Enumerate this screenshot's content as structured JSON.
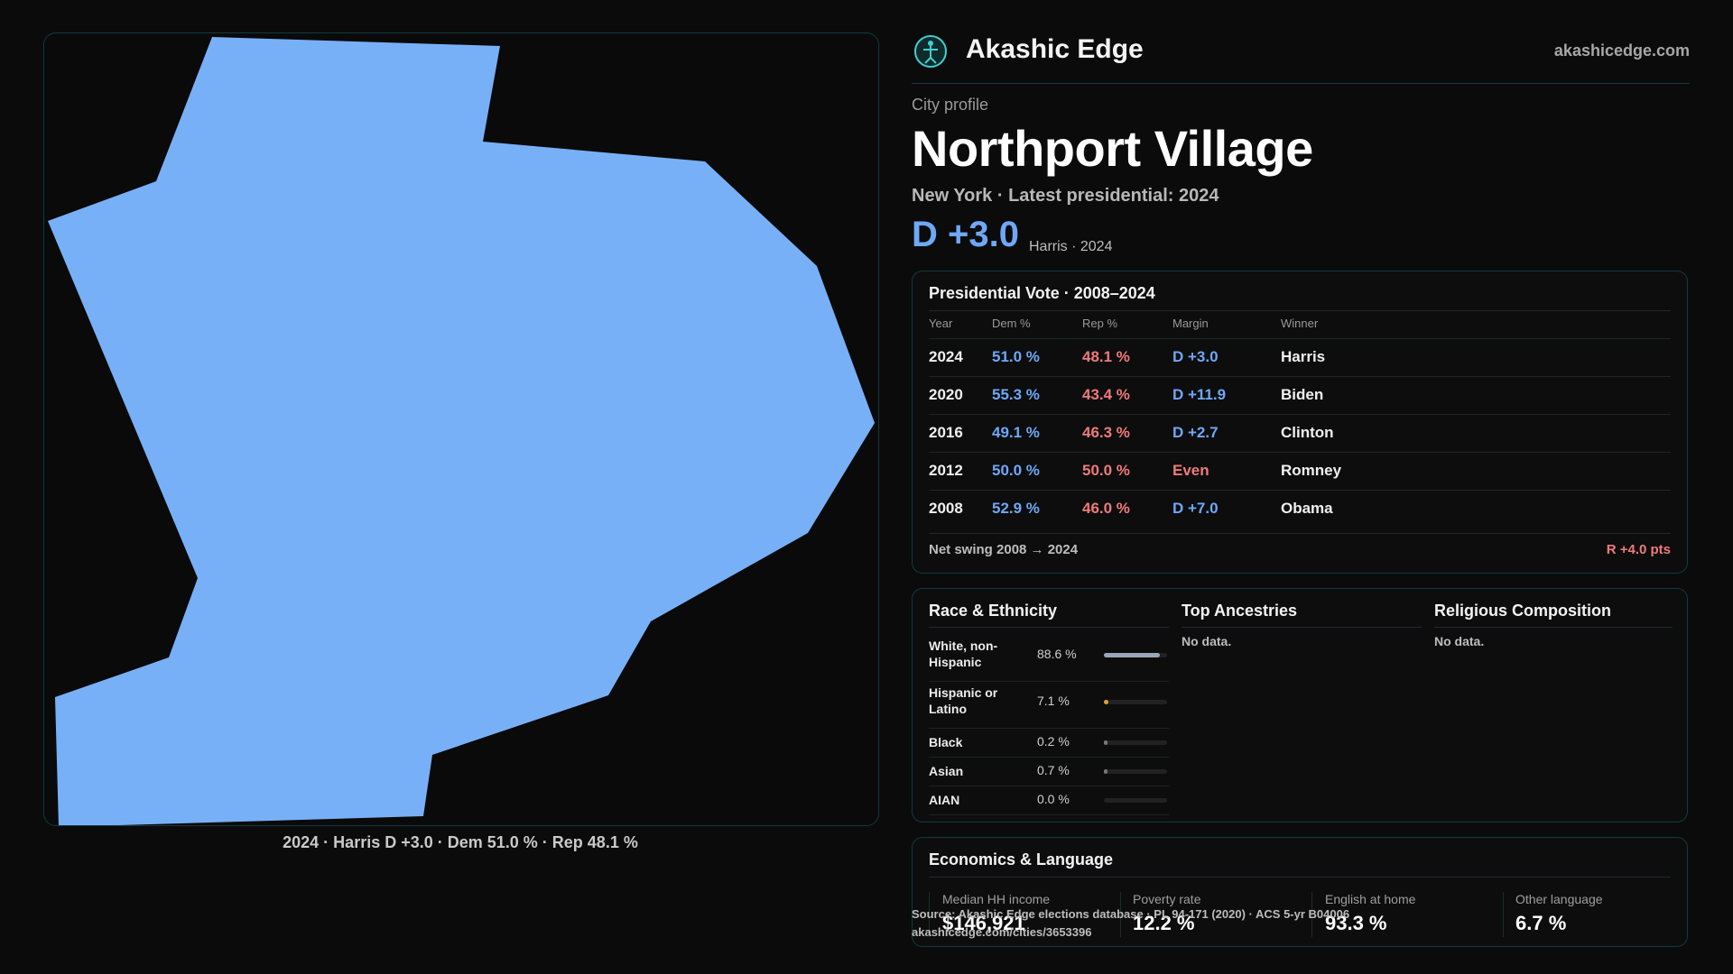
{
  "map": {
    "fill_color": "#78b0f8",
    "caption": "2024 · Harris D +3.0 · Dem 51.0 % · Rep 48.1 %"
  },
  "brand": {
    "name": "Akashic Edge",
    "url": "akashicedge.com",
    "accent": "#3fd0d0"
  },
  "profile": {
    "eyebrow": "City profile",
    "title": "Northport Village",
    "subline": "New York  · Latest presidential: 2024",
    "headline_margin": "D +3.0",
    "headline_sub": "Harris · 2024"
  },
  "presidential": {
    "title": "Presidential Vote · 2008–2024",
    "headers": {
      "year": "Year",
      "dem": "Dem %",
      "rep": "Rep %",
      "margin": "Margin",
      "winner": "Winner"
    },
    "rows": [
      {
        "year": "2024",
        "dem": "51.0 %",
        "rep": "48.1 %",
        "margin": "D +3.0",
        "margin_color": "#6ea8f7",
        "winner": "Harris"
      },
      {
        "year": "2020",
        "dem": "55.3 %",
        "rep": "43.4 %",
        "margin": "D +11.9",
        "margin_color": "#6ea8f7",
        "winner": "Biden"
      },
      {
        "year": "2016",
        "dem": "49.1 %",
        "rep": "46.3 %",
        "margin": "D +2.7",
        "margin_color": "#6ea8f7",
        "winner": "Clinton"
      },
      {
        "year": "2012",
        "dem": "50.0 %",
        "rep": "50.0 %",
        "margin": "Even",
        "margin_color": "#f07a7a",
        "winner": "Romney"
      },
      {
        "year": "2008",
        "dem": "52.9 %",
        "rep": "46.0 %",
        "margin": "D +7.0",
        "margin_color": "#6ea8f7",
        "winner": "Obama"
      }
    ],
    "swing_label": "Net swing 2008 → 2024",
    "swing_value": "R +4.0 pts"
  },
  "demographics": {
    "race_title": "Race & Ethnicity",
    "race": [
      {
        "label": "White, non-Hispanic",
        "value": "88.6 %",
        "share": 88.6,
        "color": "#9aa6b8"
      },
      {
        "label": "Hispanic or Latino",
        "value": "7.1 %",
        "share": 7.1,
        "color": "#e0a030"
      },
      {
        "label": "Black",
        "value": "0.2 %",
        "share": 0.2,
        "color": "#777777"
      },
      {
        "label": "Asian",
        "value": "0.7 %",
        "share": 0.7,
        "color": "#777777"
      },
      {
        "label": "AIAN",
        "value": "0.0 %",
        "share": 0.0,
        "color": "#777777"
      }
    ],
    "ancestry_title": "Top Ancestries",
    "ancestry_empty": "No data.",
    "religion_title": "Religious Composition",
    "religion_empty": "No data."
  },
  "economics": {
    "title": "Economics & Language",
    "items": [
      {
        "label": "Median HH income",
        "value": "$146,921"
      },
      {
        "label": "Poverty rate",
        "value": "12.2 %"
      },
      {
        "label": "English at home",
        "value": "93.3 %"
      },
      {
        "label": "Other language",
        "value": "6.7 %"
      }
    ]
  },
  "source": {
    "line1": "Source: Akashic Edge elections database · PL 94-171 (2020) · ACS 5-yr B04006",
    "line2": "akashicedge.com/cities/3653396"
  }
}
